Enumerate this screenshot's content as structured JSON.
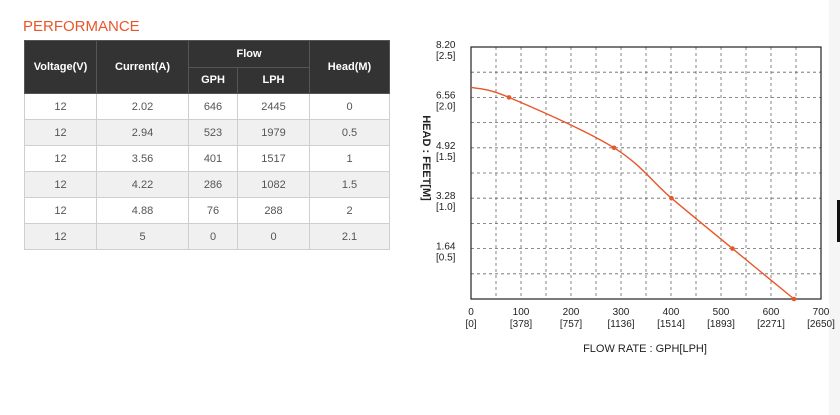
{
  "section_title": "PERFORMANCE",
  "table": {
    "headers": {
      "voltage": "Voltage(V)",
      "current": "Current(A)",
      "flow": "Flow",
      "gph": "GPH",
      "lph": "LPH",
      "head": "Head(M)"
    },
    "rows": [
      [
        "12",
        "2.02",
        "646",
        "2445",
        "0"
      ],
      [
        "12",
        "2.94",
        "523",
        "1979",
        "0.5"
      ],
      [
        "12",
        "3.56",
        "401",
        "1517",
        "1"
      ],
      [
        "12",
        "4.22",
        "286",
        "1082",
        "1.5"
      ],
      [
        "12",
        "4.88",
        "76",
        "288",
        "2"
      ],
      [
        "12",
        "5",
        "0",
        "0",
        "2.1"
      ]
    ]
  },
  "chart_data": {
    "type": "line",
    "title": "",
    "xlabel": "FLOW RATE : GPH[LPH]",
    "ylabel": "HEAD : FEET[M]",
    "xlim": [
      0,
      700
    ],
    "ylim": [
      0,
      8.2
    ],
    "x_ticks": [
      {
        "value": 0,
        "line1": "0",
        "line2": "[0]"
      },
      {
        "value": 100,
        "line1": "100",
        "line2": "[378]"
      },
      {
        "value": 200,
        "line1": "200",
        "line2": "[757]"
      },
      {
        "value": 300,
        "line1": "300",
        "line2": "[1136]"
      },
      {
        "value": 400,
        "line1": "400",
        "line2": "[1514]"
      },
      {
        "value": 500,
        "line1": "500",
        "line2": "[1893]"
      },
      {
        "value": 600,
        "line1": "600",
        "line2": "[2271]"
      },
      {
        "value": 700,
        "line1": "700",
        "line2": "[2650]"
      }
    ],
    "y_ticks": [
      {
        "value": 1.64,
        "line1": "1.64",
        "line2": "[0.5]"
      },
      {
        "value": 3.28,
        "line1": "3.28",
        "line2": "[1.0]"
      },
      {
        "value": 4.92,
        "line1": "4.92",
        "line2": "[1.5]"
      },
      {
        "value": 6.56,
        "line1": "6.56",
        "line2": "[2.0]"
      },
      {
        "value": 8.2,
        "line1": "8.20",
        "line2": "[2.5]"
      }
    ],
    "grid": true,
    "series": [
      {
        "color": "#e8562a",
        "curve_x": [
          0,
          76,
          286,
          401,
          523,
          646
        ],
        "curve_y": [
          6.89,
          6.56,
          4.92,
          3.28,
          1.64,
          0
        ],
        "markers_x": [
          76,
          286,
          401,
          523,
          646
        ],
        "markers_y": [
          6.56,
          4.92,
          3.28,
          1.64,
          0
        ]
      }
    ]
  }
}
